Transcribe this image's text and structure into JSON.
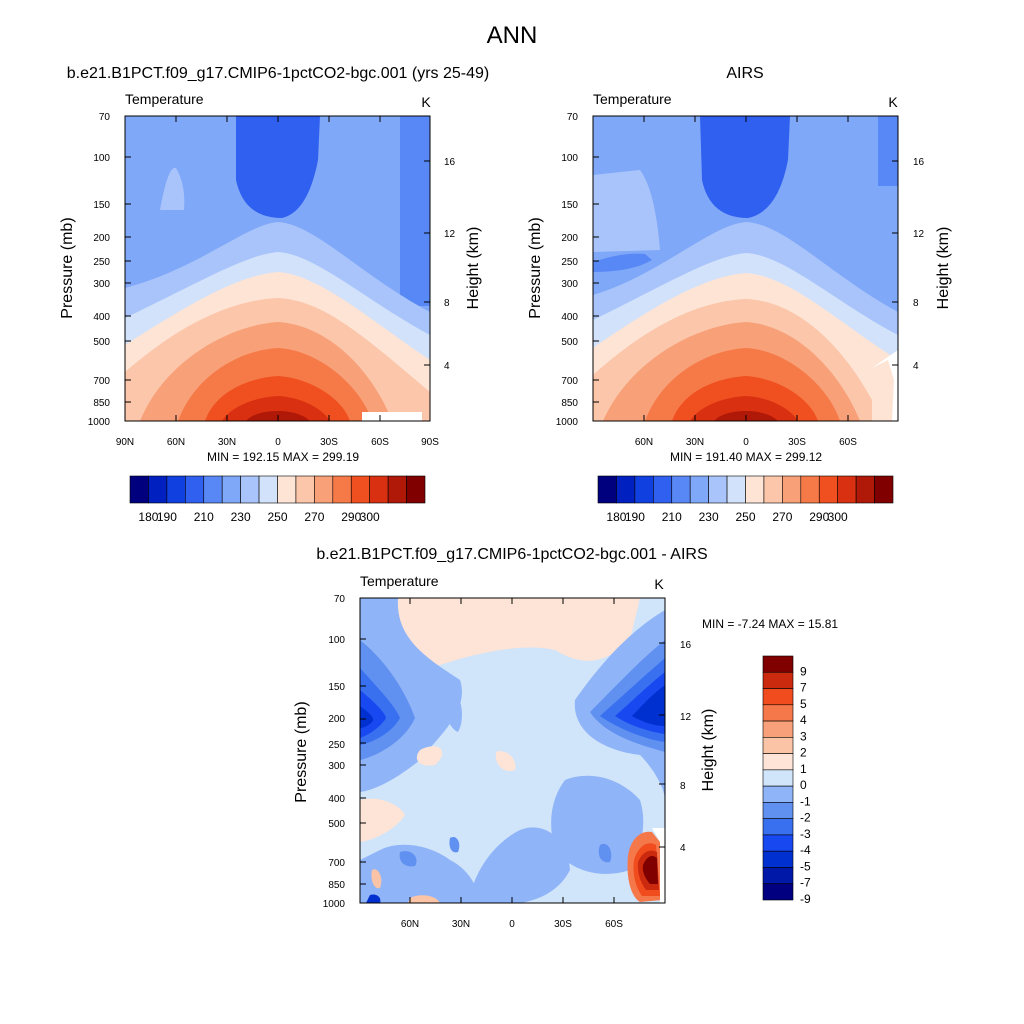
{
  "figure_title": "ANN",
  "chart_data": [
    {
      "type": "heatmap",
      "variant": "latitude-pressure filled contour",
      "title": "b.e21.B1PCT.f09_g17.CMIP6-1pctCO2-bgc.001 (yrs 25-49)",
      "left_label": "Temperature",
      "units": "K",
      "xlabel": "",
      "ylabel": "Pressure (mb)",
      "ylabel_right": "Height (km)",
      "x_ticks": [
        "90N",
        "60N",
        "30N",
        "0",
        "30S",
        "60S",
        "90S"
      ],
      "y_ticks": [
        "70",
        "100",
        "150",
        "200",
        "250",
        "300",
        "400",
        "500",
        "700",
        "850",
        "1000"
      ],
      "y_right_ticks": [
        "16",
        "12",
        "8",
        "4"
      ],
      "ylim": [
        1000,
        70
      ],
      "stats": "MIN = 192.15  MAX = 299.19",
      "min": 192.15,
      "max": 299.19,
      "contour_levels": [
        180,
        190,
        200,
        210,
        220,
        230,
        240,
        250,
        260,
        270,
        280,
        290,
        300
      ],
      "colorbar_labels": [
        "180",
        "190",
        "210",
        "230",
        "250",
        "270",
        "290",
        "300"
      ]
    },
    {
      "type": "heatmap",
      "variant": "latitude-pressure filled contour",
      "title": "AIRS",
      "left_label": "Temperature",
      "units": "K",
      "xlabel": "",
      "ylabel": "Pressure (mb)",
      "ylabel_right": "Height (km)",
      "x_ticks": [
        "60N",
        "30N",
        "0",
        "30S",
        "60S"
      ],
      "y_ticks": [
        "70",
        "100",
        "150",
        "200",
        "250",
        "300",
        "400",
        "500",
        "700",
        "850",
        "1000"
      ],
      "y_right_ticks": [
        "16",
        "12",
        "8",
        "4"
      ],
      "ylim": [
        1000,
        70
      ],
      "stats": "MIN = 191.40  MAX = 299.12",
      "min": 191.4,
      "max": 299.12,
      "contour_levels": [
        180,
        190,
        200,
        210,
        220,
        230,
        240,
        250,
        260,
        270,
        280,
        290,
        300
      ],
      "colorbar_labels": [
        "180",
        "190",
        "210",
        "230",
        "250",
        "270",
        "290",
        "300"
      ]
    },
    {
      "type": "heatmap",
      "variant": "latitude-pressure filled contour difference",
      "title": "b.e21.B1PCT.f09_g17.CMIP6-1pctCO2-bgc.001 - AIRS",
      "left_label": "Temperature",
      "units": "K",
      "xlabel": "",
      "ylabel": "Pressure (mb)",
      "ylabel_right": "Height (km)",
      "x_ticks": [
        "60N",
        "30N",
        "0",
        "30S",
        "60S"
      ],
      "y_ticks": [
        "70",
        "100",
        "150",
        "200",
        "250",
        "300",
        "400",
        "500",
        "700",
        "850",
        "1000"
      ],
      "y_right_ticks": [
        "16",
        "12",
        "8",
        "4"
      ],
      "ylim": [
        1000,
        70
      ],
      "stats": "MIN =  -7.24  MAX =  15.81",
      "min": -7.24,
      "max": 15.81,
      "contour_levels": [
        -9,
        -7,
        -5,
        -4,
        -3,
        -2,
        -1,
        0,
        1,
        2,
        3,
        4,
        5,
        7,
        9
      ],
      "colorbar_labels": [
        "9",
        "7",
        "5",
        "4",
        "3",
        "2",
        "1",
        "0",
        "-1",
        "-2",
        "-3",
        "-4",
        "-5",
        "-7",
        "-9"
      ]
    }
  ],
  "colors": {
    "abs_scale": [
      "#00007f",
      "#0020c0",
      "#1040e0",
      "#3060f0",
      "#5888f5",
      "#80a8f8",
      "#a8c4fa",
      "#d2e2fb",
      "#fde4d5",
      "#fbc6aa",
      "#f8a078",
      "#f57a48",
      "#f05020",
      "#d83010",
      "#b01808",
      "#800000"
    ],
    "diff_scale": [
      "#000080",
      "#0018a8",
      "#0030d0",
      "#1848f0",
      "#3870f0",
      "#6090f0",
      "#90b4f8",
      "#d0e4fa",
      "#fde4d6",
      "#fbc4a6",
      "#f8a07a",
      "#f5784a",
      "#f04c1e",
      "#cc2a0e",
      "#800000"
    ]
  }
}
